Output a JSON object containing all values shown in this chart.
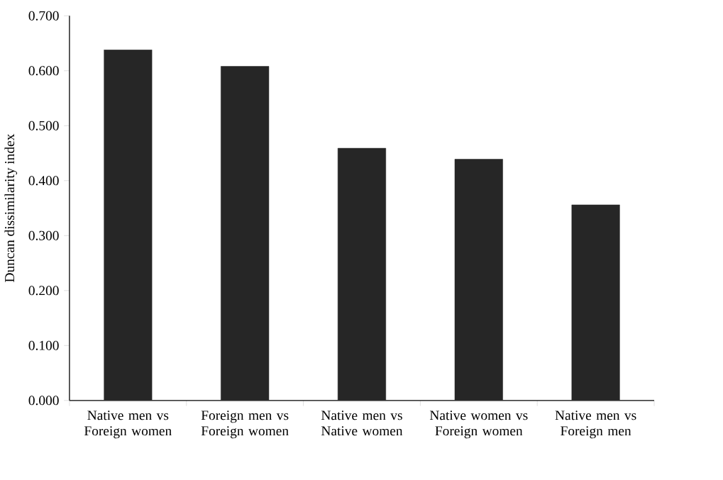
{
  "chart_data": {
    "type": "bar",
    "ylabel": "Duncan dissimilarity index",
    "categories": [
      "Native men vs Foreign women",
      "Foreign men vs Foreign women",
      "Native men vs Native women",
      "Native women vs Foreign women",
      "Native men vs Foreign men"
    ],
    "values": [
      0.638,
      0.608,
      0.459,
      0.439,
      0.356
    ],
    "color": "#262626",
    "ylim": [
      0,
      0.7
    ],
    "yticks": [
      {
        "value": 0,
        "label": "0.000"
      },
      {
        "value": 0.1,
        "label": "0.100"
      },
      {
        "value": 0.2,
        "label": "0.200"
      },
      {
        "value": 0.3,
        "label": "0.300"
      },
      {
        "value": 0.4,
        "label": "0.400"
      },
      {
        "value": 0.5,
        "label": "0.500"
      },
      {
        "value": 0.6,
        "label": "0.600"
      },
      {
        "value": 0.7,
        "label": "0.700"
      }
    ]
  }
}
